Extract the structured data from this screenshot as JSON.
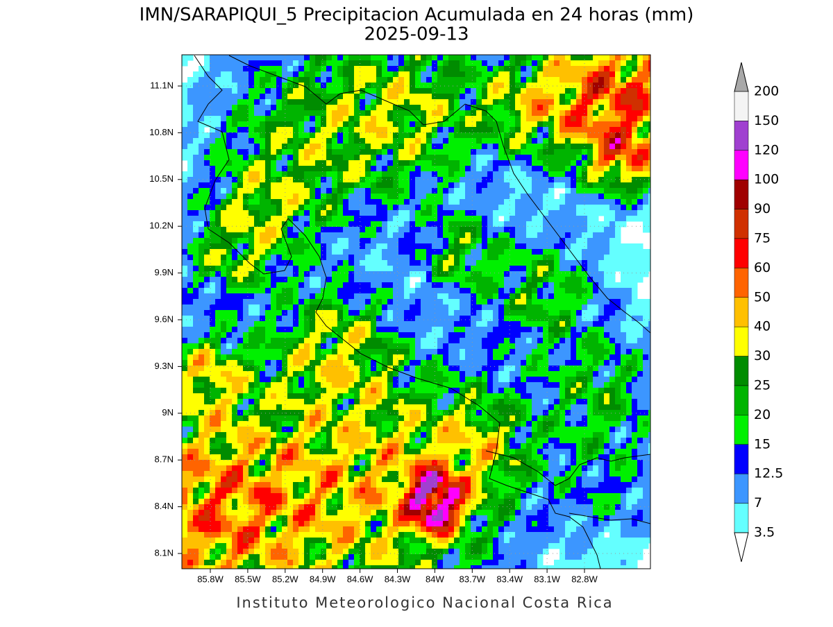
{
  "header": {
    "title": "IMN/SARAPIQUI_5 Precipitacion Acumulada en 24 horas (mm)",
    "date": "2025-09-13"
  },
  "map": {
    "lat_labels": [
      "11.1N",
      "10.8N",
      "10.5N",
      "10.2N",
      "9.9N",
      "9.6N",
      "9.3N",
      "9N",
      "8.7N",
      "8.4N",
      "8.1N"
    ],
    "lon_labels": [
      "85.8W",
      "85.5W",
      "85.2W",
      "84.9W",
      "84.6W",
      "84.3W",
      "84W",
      "83.7W",
      "83.4W",
      "83.1W",
      "82.8W"
    ],
    "grid": true
  },
  "colorbar": {
    "levels": [
      200,
      150,
      120,
      100,
      90,
      75,
      60,
      50,
      40,
      30,
      25,
      20,
      15,
      12.5,
      7,
      3.5
    ],
    "colors": [
      "#f4f4f4",
      "#a040d0",
      "#ff00ff",
      "#a00000",
      "#d03000",
      "#ff0000",
      "#ff6400",
      "#ffc000",
      "#ffff00",
      "#008c00",
      "#00b400",
      "#00f000",
      "#0000ff",
      "#3c96ff",
      "#64ffff"
    ],
    "over_color": "#a8a8a8",
    "under_color": "#ffffff"
  },
  "footer": "Instituto Meteorologico Nacional Costa Rica"
}
